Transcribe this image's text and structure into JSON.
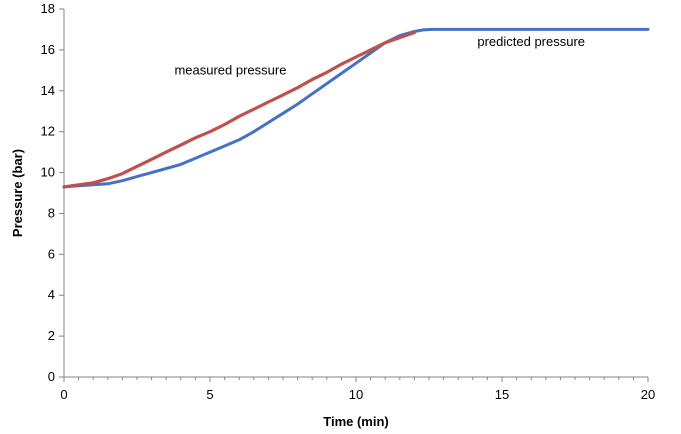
{
  "chart_data": {
    "type": "line",
    "xlabel": "Time (min)",
    "ylabel": "Pressure (bar)",
    "xlim": [
      0,
      20
    ],
    "ylim": [
      0,
      18
    ],
    "x_ticks": [
      0,
      5,
      10,
      15,
      20
    ],
    "y_ticks": [
      0,
      2,
      4,
      6,
      8,
      10,
      12,
      14,
      16,
      18
    ],
    "x_tick_labels": [
      "0",
      "5",
      "10",
      "15",
      "20"
    ],
    "y_tick_labels": [
      "0",
      "2",
      "4",
      "6",
      "8",
      "10",
      "12",
      "14",
      "16",
      "18"
    ],
    "grid": false,
    "legend": "none",
    "series": [
      {
        "name": "predicted pressure",
        "color": "#4472C4",
        "x": [
          0,
          0.5,
          1,
          1.5,
          2,
          2.5,
          3,
          3.5,
          4,
          4.5,
          5,
          5.5,
          6,
          6.5,
          7,
          7.5,
          8,
          8.5,
          9,
          9.5,
          10,
          10.5,
          11,
          11.5,
          12,
          12.3,
          12.6,
          13,
          13.5,
          14,
          15,
          16,
          17,
          18,
          19,
          20
        ],
        "y": [
          9.3,
          9.35,
          9.4,
          9.45,
          9.6,
          9.8,
          10.0,
          10.2,
          10.4,
          10.7,
          11.0,
          11.3,
          11.6,
          12.0,
          12.45,
          12.9,
          13.35,
          13.85,
          14.35,
          14.85,
          15.35,
          15.85,
          16.35,
          16.7,
          16.9,
          16.98,
          17.0,
          17.0,
          17.0,
          17.0,
          17.0,
          17.0,
          17.0,
          17.0,
          17.0,
          17.0
        ]
      },
      {
        "name": "measured pressure",
        "color": "#C0504D",
        "x": [
          0,
          0.5,
          1,
          1.5,
          2,
          2.5,
          3,
          3.5,
          4,
          4.5,
          5,
          5.5,
          6,
          6.5,
          7,
          7.5,
          8,
          8.5,
          9,
          9.5,
          10,
          10.5,
          11,
          11.5,
          12
        ],
        "y": [
          9.3,
          9.4,
          9.5,
          9.7,
          9.95,
          10.3,
          10.65,
          11.0,
          11.35,
          11.7,
          12.0,
          12.35,
          12.75,
          13.1,
          13.45,
          13.8,
          14.15,
          14.55,
          14.9,
          15.3,
          15.65,
          16.0,
          16.35,
          16.6,
          16.85
        ]
      }
    ],
    "annotations": [
      {
        "text": "measured pressure",
        "x": 5.7,
        "y": 14.8
      },
      {
        "text": "predicted pressure",
        "x": 16.0,
        "y": 16.2
      }
    ]
  }
}
